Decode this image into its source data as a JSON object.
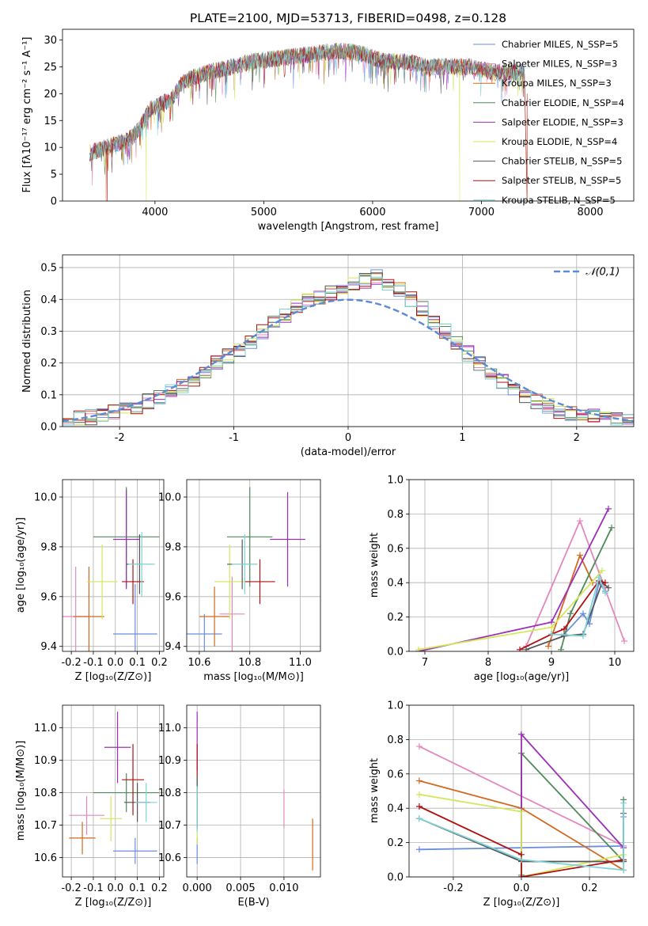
{
  "chart_data": [
    {
      "id": "spectrum",
      "type": "line",
      "title": "PLATE=2100, MJD=53713, FIBERID=0498, z=0.128",
      "xlabel": "wavelength [Angstrom, rest frame]",
      "ylabel": "Flux [fλ10⁻¹⁷ erg cm⁻² s⁻¹ A⁻¹]",
      "xlim": [
        3150,
        8400
      ],
      "ylim": [
        0,
        32
      ],
      "xticks": [
        4000,
        5000,
        6000,
        7000,
        8000
      ],
      "yticks": [
        0,
        5,
        10,
        15,
        20,
        25,
        30
      ],
      "grid": false,
      "legend_position": "upper right",
      "series": [
        {
          "name": "Chabrier MILES, N_SSP=5",
          "color": "#6a8ede"
        },
        {
          "name": "Salpeter MILES, N_SSP=3",
          "color": "#e388bd"
        },
        {
          "name": "Kroupa MILES, N_SSP=3",
          "color": "#d2691e"
        },
        {
          "name": "Chabrier ELODIE, N_SSP=4",
          "color": "#4f8a5b"
        },
        {
          "name": "Salpeter ELODIE, N_SSP=3",
          "color": "#9b30b8"
        },
        {
          "name": "Kroupa ELODIE, N_SSP=4",
          "color": "#d4e65a"
        },
        {
          "name": "Chabrier STELIB, N_SSP=5",
          "color": "#555555"
        },
        {
          "name": "Salpeter STELIB, N_SSP=5",
          "color": "#b01010"
        },
        {
          "name": "Kroupa STELIB, N_SSP=5",
          "color": "#7dd3d8"
        }
      ],
      "continuum": {
        "x": [
          3400,
          3550,
          3700,
          3800,
          3900,
          3950,
          4050,
          4150,
          4250,
          4350,
          4500,
          4700,
          4900,
          5100,
          5300,
          5500,
          5700,
          5900,
          6100,
          6300,
          6500,
          6700,
          6900,
          7100,
          7300,
          7400
        ],
        "y": [
          9,
          10,
          11,
          12,
          15,
          17,
          18,
          19,
          22,
          23,
          24,
          25,
          26,
          26.5,
          27,
          27.5,
          28,
          27.5,
          26,
          26,
          25,
          25,
          25,
          24,
          24,
          24
        ]
      }
    },
    {
      "id": "residuals",
      "type": "histogram",
      "xlabel": "(data-model)/error",
      "ylabel": "Normed distribution",
      "xlim": [
        -2.5,
        2.5
      ],
      "ylim": [
        0,
        0.54
      ],
      "xticks": [
        -2,
        -1,
        0,
        1,
        2
      ],
      "yticks": [
        0,
        0.1,
        0.2,
        0.3,
        0.4,
        0.5
      ],
      "grid": true,
      "legend_position": "upper right",
      "reference": {
        "name": "𝒩(0,1)",
        "mean": 0,
        "sigma": 1,
        "color": "#5b8ad6"
      },
      "bin_width": 0.1,
      "envelope": [
        0.02,
        0.025,
        0.03,
        0.035,
        0.045,
        0.055,
        0.065,
        0.08,
        0.095,
        0.11,
        0.13,
        0.15,
        0.17,
        0.2,
        0.22,
        0.24,
        0.27,
        0.3,
        0.33,
        0.35,
        0.38,
        0.4,
        0.41,
        0.42,
        0.44,
        0.45,
        0.46,
        0.47,
        0.45,
        0.43,
        0.4,
        0.37,
        0.33,
        0.3,
        0.26,
        0.23,
        0.2,
        0.17,
        0.14,
        0.12,
        0.1,
        0.08,
        0.065,
        0.05,
        0.04,
        0.035,
        0.03,
        0.025,
        0.02,
        0.02
      ]
    },
    {
      "id": "age_vs_Z",
      "type": "errorbar",
      "xlabel": "Z [log₁₀(Z/Z⊙)]",
      "ylabel": "age  [log₁₀(age/yr)]",
      "xlim": [
        -0.24,
        0.22
      ],
      "ylim": [
        9.38,
        10.07
      ],
      "xticks": [
        -0.2,
        -0.1,
        0.0,
        0.1,
        0.2
      ],
      "yticks": [
        9.4,
        9.6,
        9.8,
        10.0
      ],
      "grid": true,
      "points": [
        {
          "color": "#6a8ede",
          "x": 0.09,
          "xerr": 0.1,
          "y": 9.45,
          "yerr": 0.2
        },
        {
          "color": "#e388bd",
          "x": -0.18,
          "xerr": 0.06,
          "y": 9.52,
          "yerr": 0.2
        },
        {
          "color": "#d2691e",
          "x": -0.12,
          "xerr": 0.07,
          "y": 9.52,
          "yerr": 0.2
        },
        {
          "color": "#4f8a5b",
          "x": 0.05,
          "xerr": 0.15,
          "y": 9.84,
          "yerr": 0.2
        },
        {
          "color": "#9b30b8",
          "x": 0.05,
          "xerr": 0.06,
          "y": 9.83,
          "yerr": 0.2
        },
        {
          "color": "#d4e65a",
          "x": -0.06,
          "xerr": 0.07,
          "y": 9.66,
          "yerr": 0.15
        },
        {
          "color": "#555555",
          "x": 0.11,
          "xerr": 0.06,
          "y": 9.73,
          "yerr": 0.12
        },
        {
          "color": "#b01010",
          "x": 0.08,
          "xerr": 0.05,
          "y": 9.66,
          "yerr": 0.09
        },
        {
          "color": "#7dd3d8",
          "x": 0.12,
          "xerr": 0.06,
          "y": 9.73,
          "yerr": 0.13
        }
      ]
    },
    {
      "id": "age_vs_mass",
      "type": "errorbar",
      "xlabel": "mass [log₁₀(M/M⊙)]",
      "ylabel": "",
      "xlim": [
        10.55,
        11.08
      ],
      "ylim": [
        9.38,
        10.07
      ],
      "xticks": [
        10.6,
        10.8,
        11.0
      ],
      "yticks": [
        9.4,
        9.6,
        9.8,
        10.0
      ],
      "grid": true,
      "points": [
        {
          "color": "#6a8ede",
          "x": 10.62,
          "xerr": 0.07,
          "y": 9.45,
          "yerr": 0.08
        },
        {
          "color": "#e388bd",
          "x": 10.73,
          "xerr": 0.05,
          "y": 9.53,
          "yerr": 0.15
        },
        {
          "color": "#d2691e",
          "x": 10.66,
          "xerr": 0.06,
          "y": 9.52,
          "yerr": 0.12
        },
        {
          "color": "#4f8a5b",
          "x": 10.8,
          "xerr": 0.09,
          "y": 9.84,
          "yerr": 0.2
        },
        {
          "color": "#9b30b8",
          "x": 10.95,
          "xerr": 0.07,
          "y": 9.83,
          "yerr": 0.19
        },
        {
          "color": "#d4e65a",
          "x": 10.72,
          "xerr": 0.06,
          "y": 9.66,
          "yerr": 0.15
        },
        {
          "color": "#555555",
          "x": 10.77,
          "xerr": 0.06,
          "y": 9.73,
          "yerr": 0.1
        },
        {
          "color": "#b01010",
          "x": 10.84,
          "xerr": 0.06,
          "y": 9.66,
          "yerr": 0.09
        },
        {
          "color": "#7dd3d8",
          "x": 10.78,
          "xerr": 0.05,
          "y": 9.73,
          "yerr": 0.12
        }
      ]
    },
    {
      "id": "weight_vs_age",
      "type": "line",
      "xlabel": "age  [log₁₀(age/yr)]",
      "ylabel": "mass weight",
      "xlim": [
        6.75,
        10.3
      ],
      "ylim": [
        0,
        1
      ],
      "xticks": [
        7,
        8,
        9,
        10
      ],
      "yticks": [
        0.0,
        0.2,
        0.4,
        0.6,
        0.8,
        1.0
      ],
      "grid": true,
      "series": [
        {
          "color": "#6a8ede",
          "x": [
            9.2,
            9.5,
            9.6,
            9.75,
            9.85
          ],
          "y": [
            0.1,
            0.22,
            0.16,
            0.4,
            0.35
          ]
        },
        {
          "color": "#e388bd",
          "x": [
            8.6,
            9.45,
            10.15
          ],
          "y": [
            0.03,
            0.76,
            0.06
          ]
        },
        {
          "color": "#d2691e",
          "x": [
            8.95,
            9.45,
            9.65
          ],
          "y": [
            0.03,
            0.56,
            0.4
          ]
        },
        {
          "color": "#4f8a5b",
          "x": [
            9.15,
            9.3,
            9.95
          ],
          "y": [
            0.01,
            0.22,
            0.72
          ]
        },
        {
          "color": "#9b30b8",
          "x": [
            6.9,
            9.0,
            9.9
          ],
          "y": [
            0.0,
            0.17,
            0.83
          ]
        },
        {
          "color": "#d4e65a",
          "x": [
            6.9,
            9.0,
            9.8
          ],
          "y": [
            0.01,
            0.14,
            0.47
          ]
        },
        {
          "color": "#555555",
          "x": [
            8.6,
            9.2,
            9.5,
            9.8,
            9.9
          ],
          "y": [
            0.01,
            0.09,
            0.1,
            0.4,
            0.37
          ]
        },
        {
          "color": "#b01010",
          "x": [
            8.5,
            9.0,
            9.2,
            9.75,
            9.85
          ],
          "y": [
            0.01,
            0.1,
            0.13,
            0.41,
            0.4
          ]
        },
        {
          "color": "#7dd3d8",
          "x": [
            9.0,
            9.5,
            9.75,
            9.85
          ],
          "y": [
            0.1,
            0.09,
            0.43,
            0.34
          ]
        }
      ]
    },
    {
      "id": "mass_vs_Z",
      "type": "errorbar",
      "xlabel": "Z [log₁₀(Z/Z⊙)]",
      "ylabel": "mass [log₁₀(M/M⊙)]",
      "xlim": [
        -0.24,
        0.22
      ],
      "ylim": [
        10.54,
        11.07
      ],
      "xticks": [
        -0.2,
        -0.1,
        0.0,
        0.1,
        0.2
      ],
      "yticks": [
        10.6,
        10.7,
        10.8,
        10.9,
        11.0
      ],
      "grid": true,
      "points": [
        {
          "color": "#6a8ede",
          "x": 0.09,
          "xerr": 0.1,
          "y": 10.62,
          "yerr": 0.04
        },
        {
          "color": "#e388bd",
          "x": -0.13,
          "xerr": 0.08,
          "y": 10.73,
          "yerr": 0.06
        },
        {
          "color": "#d2691e",
          "x": -0.15,
          "xerr": 0.06,
          "y": 10.66,
          "yerr": 0.05
        },
        {
          "color": "#4f8a5b",
          "x": 0.05,
          "xerr": 0.15,
          "y": 10.8,
          "yerr": 0.06
        },
        {
          "color": "#9b30b8",
          "x": 0.01,
          "xerr": 0.06,
          "y": 10.94,
          "yerr": 0.11
        },
        {
          "color": "#d4e65a",
          "x": -0.02,
          "xerr": 0.05,
          "y": 10.72,
          "yerr": 0.07
        },
        {
          "color": "#555555",
          "x": 0.1,
          "xerr": 0.06,
          "y": 10.77,
          "yerr": 0.06
        },
        {
          "color": "#b01010",
          "x": 0.08,
          "xerr": 0.05,
          "y": 10.84,
          "yerr": 0.11
        },
        {
          "color": "#7dd3d8",
          "x": 0.14,
          "xerr": 0.05,
          "y": 10.77,
          "yerr": 0.06
        }
      ]
    },
    {
      "id": "mass_vs_EBV",
      "type": "errorbar",
      "xlabel": "E(B-V)",
      "ylabel": "",
      "xlim": [
        -0.0012,
        0.0142
      ],
      "ylim": [
        10.54,
        11.07
      ],
      "xticks": [
        0.0,
        0.005,
        0.01
      ],
      "xtick_labels": [
        "0.000",
        "0.005",
        "0.010"
      ],
      "yticks": [
        10.6,
        10.7,
        10.8,
        10.9,
        11.0
      ],
      "grid": true,
      "points": [
        {
          "color": "#6a8ede",
          "x": 0.0,
          "y": 10.62,
          "yerr": 0.04
        },
        {
          "color": "#e388bd",
          "x": 0.01,
          "y": 10.75,
          "yerr": 0.06
        },
        {
          "color": "#d2691e",
          "x": 0.0133,
          "y": 10.64,
          "yerr": 0.08
        },
        {
          "color": "#4f8a5b",
          "x": 0.0,
          "y": 10.8,
          "yerr": 0.05
        },
        {
          "color": "#9b30b8",
          "x": 0.0,
          "y": 10.96,
          "yerr": 0.09
        },
        {
          "color": "#d4e65a",
          "x": 0.0,
          "y": 10.72,
          "yerr": 0.08
        },
        {
          "color": "#555555",
          "x": 0.0,
          "y": 10.77,
          "yerr": 0.08
        },
        {
          "color": "#b01010",
          "x": 0.0,
          "y": 10.9,
          "yerr": 0.05
        },
        {
          "color": "#7dd3d8",
          "x": 0.0,
          "y": 10.75,
          "yerr": 0.07
        }
      ]
    },
    {
      "id": "weight_vs_Z",
      "type": "line",
      "xlabel": "Z [log₁₀(Z/Z⊙)]",
      "ylabel": "mass weight",
      "xlim": [
        -0.33,
        0.33
      ],
      "ylim": [
        0,
        1
      ],
      "xticks": [
        -0.2,
        0.0,
        0.2
      ],
      "yticks": [
        0.0,
        0.2,
        0.4,
        0.6,
        0.8,
        1.0
      ],
      "grid": true,
      "series": [
        {
          "color": "#6a8ede",
          "x": [
            -0.3,
            0.3,
            0.3
          ],
          "y": [
            0.16,
            0.18,
            0.35
          ]
        },
        {
          "color": "#e388bd",
          "x": [
            -0.3,
            0.3
          ],
          "y": [
            0.76,
            0.18
          ]
        },
        {
          "color": "#d2691e",
          "x": [
            -0.3,
            0.0,
            0.3
          ],
          "y": [
            0.56,
            0.4,
            0.04
          ]
        },
        {
          "color": "#4f8a5b",
          "x": [
            0.0,
            0.0,
            0.3,
            0.3
          ],
          "y": [
            0.01,
            0.72,
            0.09,
            0.45
          ]
        },
        {
          "color": "#9b30b8",
          "x": [
            0.0,
            0.0,
            0.3
          ],
          "y": [
            0.0,
            0.83,
            0.17
          ]
        },
        {
          "color": "#d4e65a",
          "x": [
            -0.3,
            0.0,
            0.0,
            0.3
          ],
          "y": [
            0.48,
            0.38,
            0.0,
            0.13
          ]
        },
        {
          "color": "#555555",
          "x": [
            -0.3,
            0.0,
            0.3,
            0.3
          ],
          "y": [
            0.34,
            0.09,
            0.09,
            0.37
          ]
        },
        {
          "color": "#b01010",
          "x": [
            -0.3,
            0.0,
            0.0,
            0.3
          ],
          "y": [
            0.41,
            0.13,
            0.0,
            0.1
          ]
        },
        {
          "color": "#7dd3d8",
          "x": [
            -0.3,
            0.0,
            0.3,
            0.3
          ],
          "y": [
            0.34,
            0.1,
            0.04,
            0.43
          ]
        }
      ]
    }
  ]
}
